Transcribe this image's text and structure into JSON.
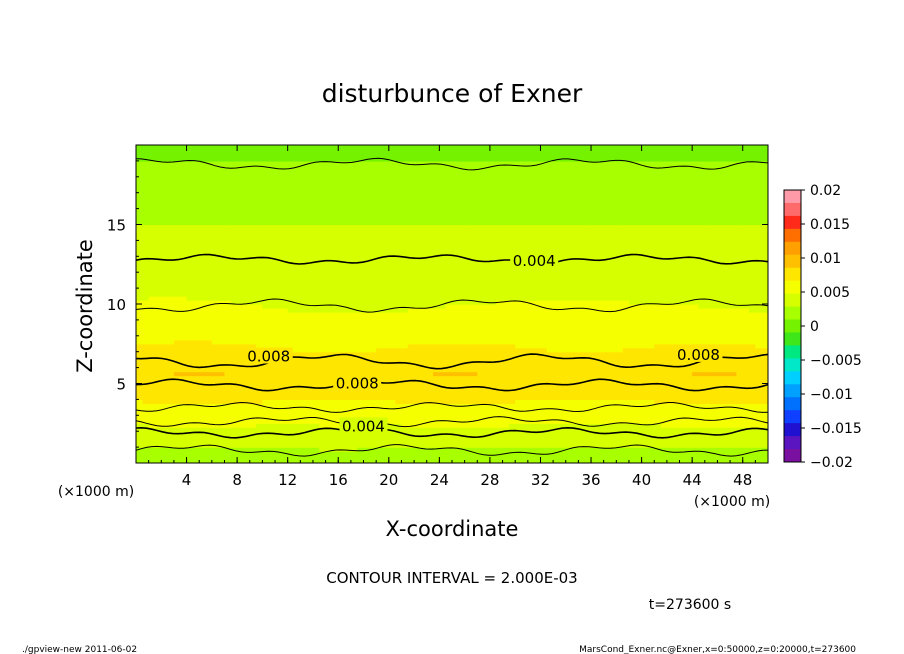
{
  "chart_data": {
    "type": "heatmap",
    "title": "disturbunce of Exner",
    "xlabel": "X-coordinate",
    "ylabel": "Z-coordinate",
    "x_unit": "(×1000 m)",
    "y_unit": "(×1000 m)",
    "xlim": [
      0,
      50
    ],
    "ylim": [
      0,
      20
    ],
    "x_ticks": [
      "4",
      "8",
      "12",
      "16",
      "20",
      "24",
      "28",
      "32",
      "36",
      "40",
      "44",
      "48"
    ],
    "y_ticks": [
      "5",
      "10",
      "15"
    ],
    "contour_interval_text": "CONTOUR INTERVAL = 2.000E-03",
    "time_text": "t=273600 s",
    "contour_labels": [
      {
        "text": "0.004",
        "x": 31.5,
        "z": 12.7
      },
      {
        "text": "0.008",
        "x": 10.5,
        "z": 6.7
      },
      {
        "text": "0.008",
        "x": 17.5,
        "z": 5.0
      },
      {
        "text": "0.008",
        "x": 44.5,
        "z": 6.8
      },
      {
        "text": "0.004",
        "x": 18.0,
        "z": 2.3
      }
    ],
    "z_profile": [
      {
        "z": 0.0,
        "v": 0.0012
      },
      {
        "z": 0.6,
        "v": 0.0022
      },
      {
        "z": 1.2,
        "v": 0.0032
      },
      {
        "z": 1.8,
        "v": 0.004
      },
      {
        "z": 2.5,
        "v": 0.0049
      },
      {
        "z": 3.2,
        "v": 0.0058
      },
      {
        "z": 4.0,
        "v": 0.0068
      },
      {
        "z": 4.6,
        "v": 0.0077
      },
      {
        "z": 5.0,
        "v": 0.0081
      },
      {
        "z": 5.6,
        "v": 0.0083
      },
      {
        "z": 6.2,
        "v": 0.0079
      },
      {
        "z": 6.8,
        "v": 0.0071
      },
      {
        "z": 7.6,
        "v": 0.0064
      },
      {
        "z": 8.6,
        "v": 0.0056
      },
      {
        "z": 9.6,
        "v": 0.0049
      },
      {
        "z": 10.6,
        "v": 0.0044
      },
      {
        "z": 12.0,
        "v": 0.0042
      },
      {
        "z": 13.0,
        "v": 0.0039
      },
      {
        "z": 14.5,
        "v": 0.0031
      },
      {
        "z": 16.0,
        "v": 0.0024
      },
      {
        "z": 17.5,
        "v": 0.0017
      },
      {
        "z": 18.8,
        "v": 0.001
      },
      {
        "z": 20.0,
        "v": 0.0004
      }
    ],
    "colorbar": {
      "tick_labels": [
        "0.02",
        "0.015",
        "0.01",
        "0.005",
        "0",
        "−0.005",
        "−0.01",
        "−0.015",
        "−0.02"
      ],
      "range": [
        -0.02,
        0.02
      ],
      "colors": [
        "#ff9aa8",
        "#ff6a6a",
        "#ff2a1a",
        "#ff6f00",
        "#ff9f00",
        "#ffc000",
        "#ffe600",
        "#f6ff00",
        "#d6ff00",
        "#a8ff00",
        "#74f200",
        "#3ee61a",
        "#00e880",
        "#00e8c8",
        "#00cfff",
        "#00a0ff",
        "#0070ff",
        "#1040ff",
        "#2010d0",
        "#5a14c0",
        "#7a10a0"
      ]
    }
  },
  "footer": {
    "left_text": "./gpview-new   2011-06-02",
    "right_text": "MarsCond_Exner.nc@Exner,x=0:50000,z=0:20000,t=273600"
  }
}
